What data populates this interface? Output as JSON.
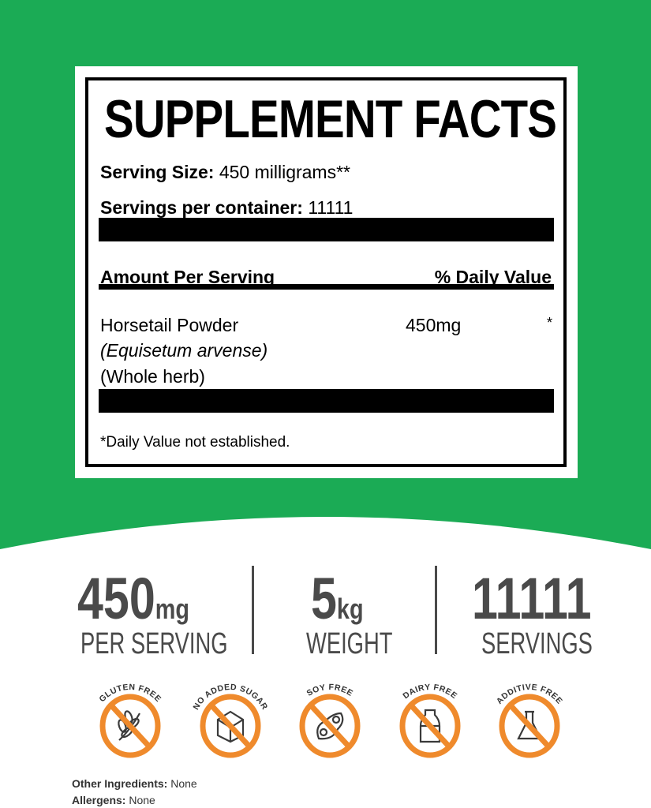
{
  "label": {
    "title": "SUPPLEMENT FACTS",
    "serving_size_label": "Serving Size:",
    "serving_size_value": "450 milligrams**",
    "servings_label": "Servings per container:",
    "servings_value": "11111",
    "amount_header": "Amount Per Serving",
    "dv_header": "% Daily Value",
    "ingredient": {
      "name": "Horsetail Powder",
      "latin": "(Equisetum arvense)",
      "part": "(Whole herb)",
      "amount": "450mg",
      "dv": "*"
    },
    "footnote": "*Daily Value not established."
  },
  "stats": [
    {
      "number": "450",
      "unit": "mg",
      "label": "PER SERVING"
    },
    {
      "number": "5",
      "unit": "kg",
      "label": "WEIGHT"
    },
    {
      "number": "11111",
      "unit": "",
      "label": "SERVINGS"
    }
  ],
  "badges": [
    {
      "text": "GLUTEN FREE",
      "icon": "wheat-icon"
    },
    {
      "text": "NO ADDED SUGAR",
      "icon": "sugar-cube-icon"
    },
    {
      "text": "SOY FREE",
      "icon": "soybean-icon"
    },
    {
      "text": "DAIRY FREE",
      "icon": "milk-bottle-icon"
    },
    {
      "text": "ADDITIVE FREE",
      "icon": "flask-icon"
    }
  ],
  "other_ingredients": {
    "label": "Other Ingredients:",
    "value": "None"
  },
  "allergens": {
    "label": "Allergens:",
    "value": "None"
  },
  "colors": {
    "green": "#1bab55",
    "badge_orange": "#ef8a2c",
    "stat_gray": "#4a4a4a"
  }
}
